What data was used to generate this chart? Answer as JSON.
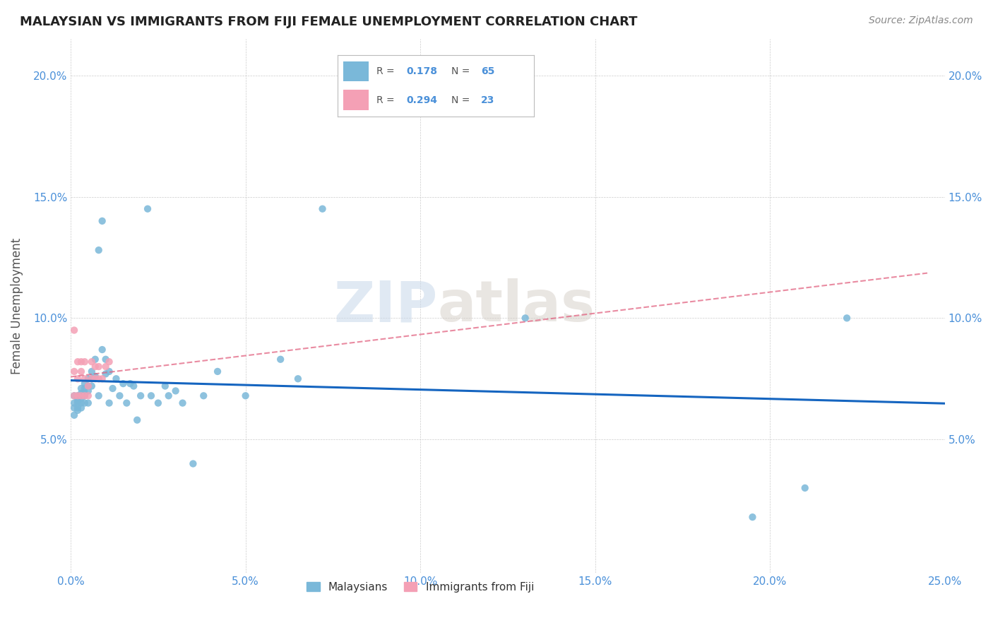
{
  "title": "MALAYSIAN VS IMMIGRANTS FROM FIJI FEMALE UNEMPLOYMENT CORRELATION CHART",
  "source": "Source: ZipAtlas.com",
  "xlabel": "",
  "ylabel": "Female Unemployment",
  "xlim": [
    0.0,
    0.25
  ],
  "ylim": [
    -0.005,
    0.215
  ],
  "xticks": [
    0.0,
    0.05,
    0.1,
    0.15,
    0.2,
    0.25
  ],
  "yticks": [
    0.05,
    0.1,
    0.15,
    0.2
  ],
  "ytick_labels": [
    "5.0%",
    "10.0%",
    "15.0%",
    "20.0%"
  ],
  "xtick_labels": [
    "0.0%",
    "5.0%",
    "10.0%",
    "15.0%",
    "20.0%",
    "25.0%"
  ],
  "legend_label1": "Malaysians",
  "legend_label2": "Immigrants from Fiji",
  "R1": "0.178",
  "N1": "65",
  "R2": "0.294",
  "N2": "23",
  "color_blue": "#7ab8d9",
  "color_pink": "#f4a0b5",
  "line_color_blue": "#1565c0",
  "line_color_pink": "#e05a7a",
  "watermark_zip": "ZIP",
  "watermark_atlas": "atlas",
  "malaysians_x": [
    0.001,
    0.001,
    0.001,
    0.001,
    0.002,
    0.002,
    0.002,
    0.002,
    0.002,
    0.002,
    0.003,
    0.003,
    0.003,
    0.003,
    0.003,
    0.003,
    0.004,
    0.004,
    0.004,
    0.004,
    0.004,
    0.005,
    0.005,
    0.005,
    0.005,
    0.006,
    0.006,
    0.006,
    0.007,
    0.007,
    0.008,
    0.008,
    0.009,
    0.009,
    0.01,
    0.01,
    0.011,
    0.011,
    0.012,
    0.013,
    0.014,
    0.015,
    0.016,
    0.017,
    0.018,
    0.019,
    0.02,
    0.022,
    0.023,
    0.025,
    0.027,
    0.028,
    0.03,
    0.032,
    0.035,
    0.038,
    0.042,
    0.05,
    0.06,
    0.065,
    0.072,
    0.13,
    0.195,
    0.21,
    0.222
  ],
  "malaysians_y": [
    0.068,
    0.065,
    0.063,
    0.06,
    0.068,
    0.067,
    0.066,
    0.065,
    0.063,
    0.062,
    0.071,
    0.069,
    0.068,
    0.067,
    0.065,
    0.063,
    0.073,
    0.071,
    0.069,
    0.068,
    0.065,
    0.075,
    0.072,
    0.07,
    0.065,
    0.078,
    0.075,
    0.072,
    0.083,
    0.076,
    0.128,
    0.068,
    0.14,
    0.087,
    0.083,
    0.077,
    0.078,
    0.065,
    0.071,
    0.075,
    0.068,
    0.073,
    0.065,
    0.073,
    0.072,
    0.058,
    0.068,
    0.145,
    0.068,
    0.065,
    0.072,
    0.068,
    0.07,
    0.065,
    0.04,
    0.068,
    0.078,
    0.068,
    0.083,
    0.075,
    0.145,
    0.1,
    0.018,
    0.03,
    0.1
  ],
  "fiji_x": [
    0.001,
    0.001,
    0.001,
    0.002,
    0.002,
    0.002,
    0.003,
    0.003,
    0.003,
    0.004,
    0.004,
    0.004,
    0.005,
    0.005,
    0.006,
    0.006,
    0.007,
    0.007,
    0.008,
    0.008,
    0.009,
    0.01,
    0.011
  ],
  "fiji_y": [
    0.068,
    0.078,
    0.095,
    0.068,
    0.075,
    0.082,
    0.068,
    0.078,
    0.082,
    0.068,
    0.075,
    0.082,
    0.068,
    0.072,
    0.075,
    0.082,
    0.075,
    0.08,
    0.075,
    0.08,
    0.075,
    0.08,
    0.082
  ]
}
